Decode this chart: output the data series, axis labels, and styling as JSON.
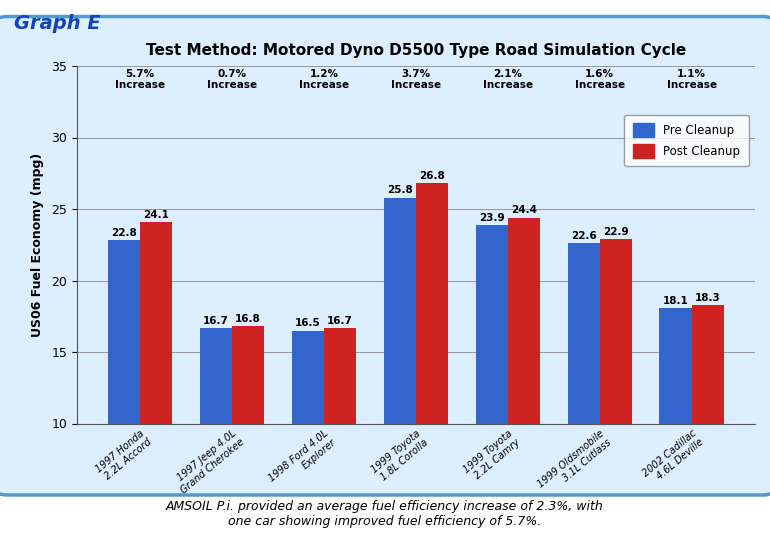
{
  "title": "Test Method: Motored Dyno D5500 Type Road Simulation Cycle",
  "ylabel": "US06 Fuel Economy (mpg)",
  "graph_label": "Graph E",
  "page_background": "#ffffff",
  "chart_box_background": "#ddeeff",
  "plot_background": "#ddeeff",
  "categories": [
    "1997 Honda\n2.2L Accord",
    "1997 Jeep 4.0L\nGrand Cherokee",
    "1998 Ford 4.0L\nExplorer",
    "1999 Toyota\n1.8L Corolla",
    "1999 Toyota\n2.2L Camry",
    "1999 Oldsmobile\n3.1L Cutlass",
    "2002 Cadillac\n4.6L Deville"
  ],
  "pre_cleanup": [
    22.8,
    16.7,
    16.5,
    25.8,
    23.9,
    22.6,
    18.1
  ],
  "post_cleanup": [
    24.1,
    16.8,
    16.7,
    26.8,
    24.4,
    22.9,
    18.3
  ],
  "increases": [
    "5.7%\nIncrease",
    "0.7%\nIncrease",
    "1.2%\nIncrease",
    "3.7%\nIncrease",
    "2.1%\nIncrease",
    "1.6%\nIncrease",
    "1.1%\nIncrease"
  ],
  "pre_color": "#3366cc",
  "post_color": "#cc2222",
  "ylim": [
    10,
    35
  ],
  "yticks": [
    10,
    15,
    20,
    25,
    30,
    35
  ],
  "footnote": "AMSOIL P.i. provided an average fuel efficiency increase of 2.3%, with\none car showing improved fuel efficiency of 5.7%.",
  "bar_width": 0.35,
  "legend_labels": [
    "Pre Cleanup",
    "Post Cleanup"
  ]
}
